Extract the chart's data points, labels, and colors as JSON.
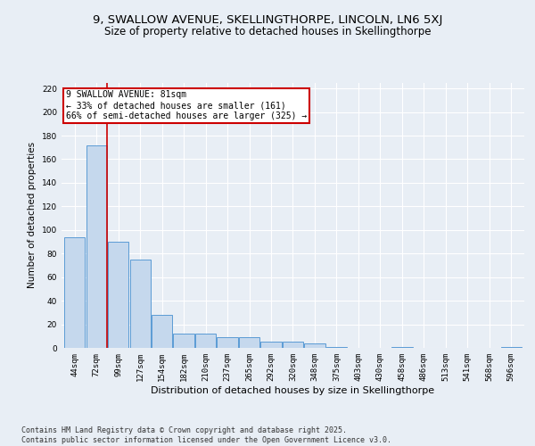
{
  "title1": "9, SWALLOW AVENUE, SKELLINGTHORPE, LINCOLN, LN6 5XJ",
  "title2": "Size of property relative to detached houses in Skellingthorpe",
  "xlabel": "Distribution of detached houses by size in Skellingthorpe",
  "ylabel": "Number of detached properties",
  "categories": [
    "44sqm",
    "72sqm",
    "99sqm",
    "127sqm",
    "154sqm",
    "182sqm",
    "210sqm",
    "237sqm",
    "265sqm",
    "292sqm",
    "320sqm",
    "348sqm",
    "375sqm",
    "403sqm",
    "430sqm",
    "458sqm",
    "486sqm",
    "513sqm",
    "541sqm",
    "568sqm",
    "596sqm"
  ],
  "values": [
    94,
    172,
    90,
    75,
    28,
    12,
    12,
    9,
    9,
    5,
    5,
    4,
    1,
    0,
    0,
    1,
    0,
    0,
    0,
    0,
    1
  ],
  "bar_color": "#c5d8ed",
  "bar_edge_color": "#5b9bd5",
  "bar_edge_width": 0.7,
  "vline_x": 1.5,
  "vline_color": "#cc0000",
  "annotation_line1": "9 SWALLOW AVENUE: 81sqm",
  "annotation_line2": "← 33% of detached houses are smaller (161)",
  "annotation_line3": "66% of semi-detached houses are larger (325) →",
  "annotation_box_color": "#ffffff",
  "annotation_box_edge": "#cc0000",
  "ylim": [
    0,
    225
  ],
  "yticks": [
    0,
    20,
    40,
    60,
    80,
    100,
    120,
    140,
    160,
    180,
    200,
    220
  ],
  "bg_color": "#e8eef5",
  "plot_bg": "#e8eef5",
  "footer": "Contains HM Land Registry data © Crown copyright and database right 2025.\nContains public sector information licensed under the Open Government Licence v3.0.",
  "title1_fontsize": 9.5,
  "title2_fontsize": 8.5,
  "xlabel_fontsize": 8,
  "ylabel_fontsize": 7.5,
  "tick_fontsize": 6.5,
  "footer_fontsize": 6.0,
  "ann_fontsize": 7.0
}
